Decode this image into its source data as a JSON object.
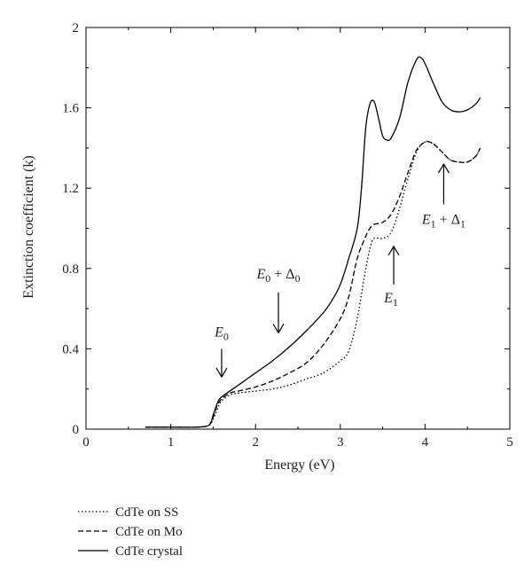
{
  "chart_data": {
    "type": "line",
    "xlabel": "Energy (eV)",
    "ylabel": "Extinction coefficient (k)",
    "xlim": [
      0,
      5
    ],
    "ylim": [
      0,
      2
    ],
    "xticks": [
      0,
      1,
      2,
      3,
      4,
      5
    ],
    "yticks": [
      0,
      0.4,
      0.8,
      1.2,
      1.6,
      2
    ],
    "xtick_labels": [
      "0",
      "1",
      "2",
      "3",
      "4",
      "5"
    ],
    "ytick_labels": [
      "0",
      "0.4",
      "0.8",
      "1.2",
      "1.6",
      "2"
    ],
    "grid": false,
    "legend_position": "bottom-left-outside",
    "series": [
      {
        "name": "CdTe on SS",
        "style": "dotted",
        "color": "#000000",
        "x": [
          0.7,
          1.0,
          1.3,
          1.45,
          1.5,
          1.55,
          1.6,
          1.7,
          1.8,
          2.0,
          2.2,
          2.4,
          2.6,
          2.8,
          3.0,
          3.1,
          3.2,
          3.28,
          3.35,
          3.4,
          3.5,
          3.6,
          3.7,
          3.8,
          3.9,
          4.0,
          4.1,
          4.2,
          4.3,
          4.4,
          4.5,
          4.6,
          4.65
        ],
        "y": [
          0.01,
          0.01,
          0.01,
          0.02,
          0.05,
          0.1,
          0.14,
          0.17,
          0.18,
          0.19,
          0.2,
          0.22,
          0.25,
          0.28,
          0.34,
          0.39,
          0.55,
          0.75,
          0.9,
          0.95,
          0.95,
          0.98,
          1.1,
          1.25,
          1.38,
          1.43,
          1.42,
          1.38,
          1.34,
          1.33,
          1.33,
          1.36,
          1.4
        ]
      },
      {
        "name": "CdTe on Mo",
        "style": "dashed",
        "color": "#000000",
        "x": [
          0.7,
          1.0,
          1.3,
          1.45,
          1.5,
          1.55,
          1.6,
          1.7,
          1.8,
          2.0,
          2.2,
          2.4,
          2.6,
          2.8,
          3.0,
          3.1,
          3.2,
          3.3,
          3.35,
          3.4,
          3.5,
          3.6,
          3.7,
          3.8,
          3.9,
          4.0,
          4.05,
          4.1,
          4.2,
          4.3,
          4.4,
          4.5,
          4.6,
          4.65
        ],
        "y": [
          0.01,
          0.01,
          0.01,
          0.02,
          0.06,
          0.12,
          0.15,
          0.18,
          0.19,
          0.21,
          0.24,
          0.28,
          0.33,
          0.42,
          0.55,
          0.66,
          0.85,
          0.96,
          1.0,
          1.02,
          1.03,
          1.07,
          1.16,
          1.28,
          1.39,
          1.43,
          1.43,
          1.42,
          1.38,
          1.34,
          1.33,
          1.33,
          1.36,
          1.4
        ]
      },
      {
        "name": "CdTe crystal",
        "style": "solid",
        "color": "#000000",
        "x": [
          0.7,
          1.0,
          1.3,
          1.45,
          1.5,
          1.55,
          1.6,
          1.8,
          2.0,
          2.2,
          2.4,
          2.6,
          2.8,
          2.9,
          3.0,
          3.1,
          3.2,
          3.25,
          3.3,
          3.35,
          3.4,
          3.45,
          3.5,
          3.55,
          3.6,
          3.7,
          3.8,
          3.9,
          3.95,
          4.0,
          4.1,
          4.2,
          4.3,
          4.4,
          4.5,
          4.6,
          4.65
        ],
        "y": [
          0.01,
          0.01,
          0.01,
          0.02,
          0.07,
          0.13,
          0.16,
          0.22,
          0.28,
          0.34,
          0.41,
          0.49,
          0.58,
          0.64,
          0.72,
          0.85,
          1.0,
          1.2,
          1.5,
          1.62,
          1.63,
          1.55,
          1.46,
          1.44,
          1.45,
          1.55,
          1.73,
          1.84,
          1.85,
          1.82,
          1.72,
          1.63,
          1.59,
          1.58,
          1.59,
          1.62,
          1.65
        ]
      }
    ],
    "annotations": [
      {
        "id": "e0",
        "base": "E",
        "sub": "0",
        "suffix_base": "",
        "suffix_sub": "",
        "arrow_x": 1.6,
        "arrow_from_y": 0.4,
        "arrow_to_y": 0.26,
        "direction": "down"
      },
      {
        "id": "e0d0",
        "base": "E",
        "sub": "0",
        "suffix_base": "Δ",
        "suffix_sub": "0",
        "arrow_x": 2.27,
        "arrow_from_y": 0.68,
        "arrow_to_y": 0.48,
        "direction": "down"
      },
      {
        "id": "e1",
        "base": "E",
        "sub": "1",
        "suffix_base": "",
        "suffix_sub": "",
        "arrow_x": 3.63,
        "arrow_from_y": 0.72,
        "arrow_to_y": 0.91,
        "direction": "up"
      },
      {
        "id": "e1d1",
        "base": "E",
        "sub": "1",
        "suffix_base": "Δ",
        "suffix_sub": "1",
        "arrow_x": 4.22,
        "arrow_from_y": 1.12,
        "arrow_to_y": 1.32,
        "direction": "up"
      }
    ]
  }
}
